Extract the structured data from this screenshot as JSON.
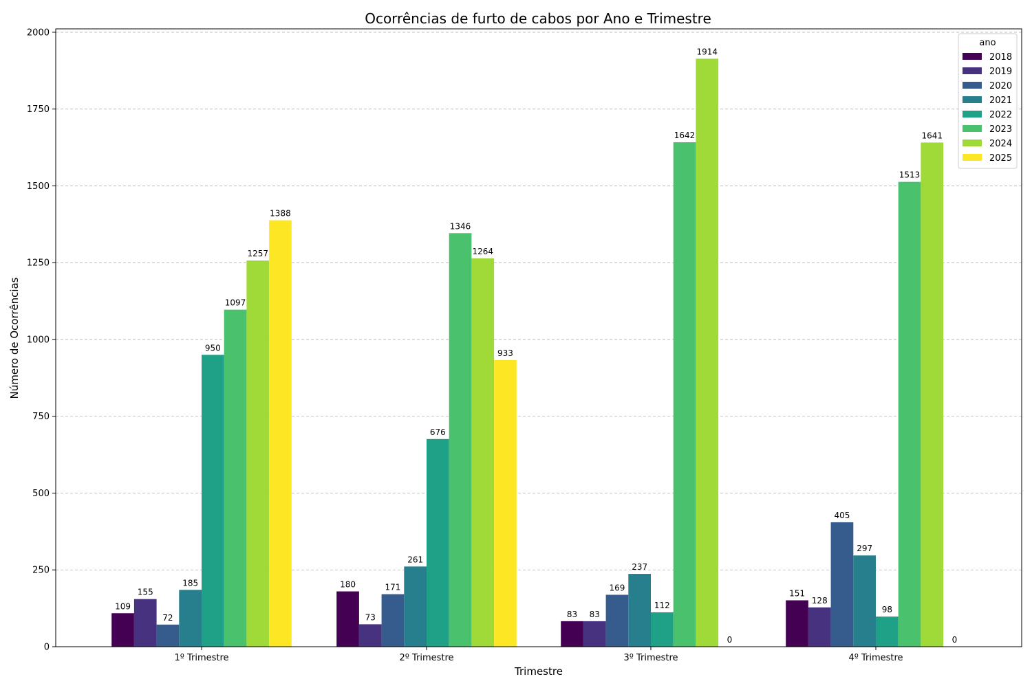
{
  "chart_data": {
    "type": "bar",
    "title": "Ocorrências de furto de cabos por Ano e Trimestre",
    "xlabel": "Trimestre",
    "ylabel": "Número de Ocorrências",
    "categories": [
      "1º Trimestre",
      "2º Trimestre",
      "3º Trimestre",
      "4º Trimestre"
    ],
    "ylim": [
      0,
      2000
    ],
    "yticks": [
      0,
      250,
      500,
      750,
      1000,
      1250,
      1500,
      1750,
      2000
    ],
    "grid": "y, dashed",
    "legend": {
      "title": "ano",
      "placement": "top-right"
    },
    "series": [
      {
        "name": "2018",
        "color": "#440154",
        "values": [
          109,
          180,
          83,
          151
        ]
      },
      {
        "name": "2019",
        "color": "#46327e",
        "values": [
          155,
          73,
          83,
          128
        ]
      },
      {
        "name": "2020",
        "color": "#365c8d",
        "values": [
          72,
          171,
          169,
          405
        ]
      },
      {
        "name": "2021",
        "color": "#277f8e",
        "values": [
          185,
          261,
          237,
          297
        ]
      },
      {
        "name": "2022",
        "color": "#1fa187",
        "values": [
          950,
          676,
          112,
          98
        ]
      },
      {
        "name": "2023",
        "color": "#4ac16d",
        "values": [
          1097,
          1346,
          1642,
          1513
        ]
      },
      {
        "name": "2024",
        "color": "#a0da39",
        "values": [
          1257,
          1264,
          1914,
          1641
        ]
      },
      {
        "name": "2025",
        "color": "#fde725",
        "values": [
          1388,
          933,
          0,
          0
        ]
      }
    ]
  }
}
